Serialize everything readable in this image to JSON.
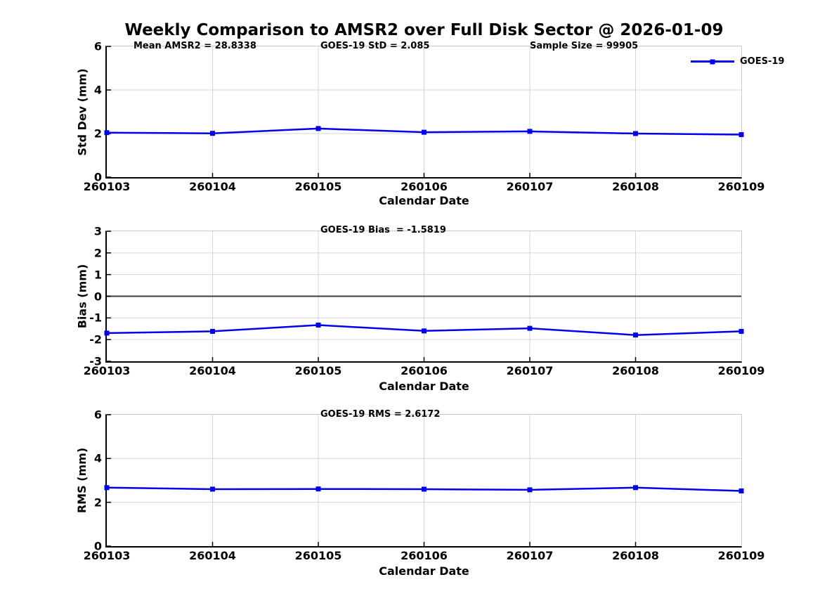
{
  "title": "Weekly Comparison to AMSR2 over Full Disk Sector @ 2026-01-09",
  "legend": {
    "label": "GOES-19"
  },
  "colors": {
    "line": "#0000ee",
    "grid": "#d6d6d6",
    "frame": "#c9c9c9",
    "axis": "#000000",
    "zero_line": "#3c3c3c"
  },
  "chart_data": [
    {
      "type": "line",
      "categories": [
        "260103",
        "260104",
        "260105",
        "260106",
        "260107",
        "260108",
        "260109"
      ],
      "series": [
        {
          "name": "GOES-19",
          "values": [
            2.04,
            2.01,
            2.23,
            2.06,
            2.1,
            2.0,
            1.95
          ]
        }
      ],
      "xlabel": "Calendar Date",
      "ylabel": "Std Dev (mm)",
      "ylim": [
        0,
        6
      ],
      "yticks": [
        0,
        2,
        4,
        6
      ],
      "grid": true,
      "zero_line": false,
      "legend_position": "top-right",
      "annotations": [
        "Mean AMSR2 = 28.8338",
        "GOES-19 StD = 2.085",
        "Sample Size = 99905"
      ]
    },
    {
      "type": "line",
      "categories": [
        "260103",
        "260104",
        "260105",
        "260106",
        "260107",
        "260108",
        "260109"
      ],
      "series": [
        {
          "name": "GOES-19",
          "values": [
            -1.7,
            -1.62,
            -1.33,
            -1.6,
            -1.48,
            -1.79,
            -1.62
          ]
        }
      ],
      "xlabel": "Calendar Date",
      "ylabel": "Bias (mm)",
      "ylim": [
        -3,
        3
      ],
      "yticks": [
        -3,
        -2,
        -1,
        0,
        1,
        2,
        3
      ],
      "grid": true,
      "zero_line": true,
      "annotations": [
        "GOES-19 Bias  = -1.5819"
      ]
    },
    {
      "type": "line",
      "categories": [
        "260103",
        "260104",
        "260105",
        "260106",
        "260107",
        "260108",
        "260109"
      ],
      "series": [
        {
          "name": "GOES-19",
          "values": [
            2.67,
            2.6,
            2.61,
            2.6,
            2.57,
            2.67,
            2.52
          ]
        }
      ],
      "xlabel": "Calendar Date",
      "ylabel": "RMS (mm)",
      "ylim": [
        0,
        6
      ],
      "yticks": [
        0,
        2,
        4,
        6
      ],
      "grid": true,
      "zero_line": false,
      "annotations": [
        "GOES-19 RMS = 2.6172"
      ]
    }
  ]
}
